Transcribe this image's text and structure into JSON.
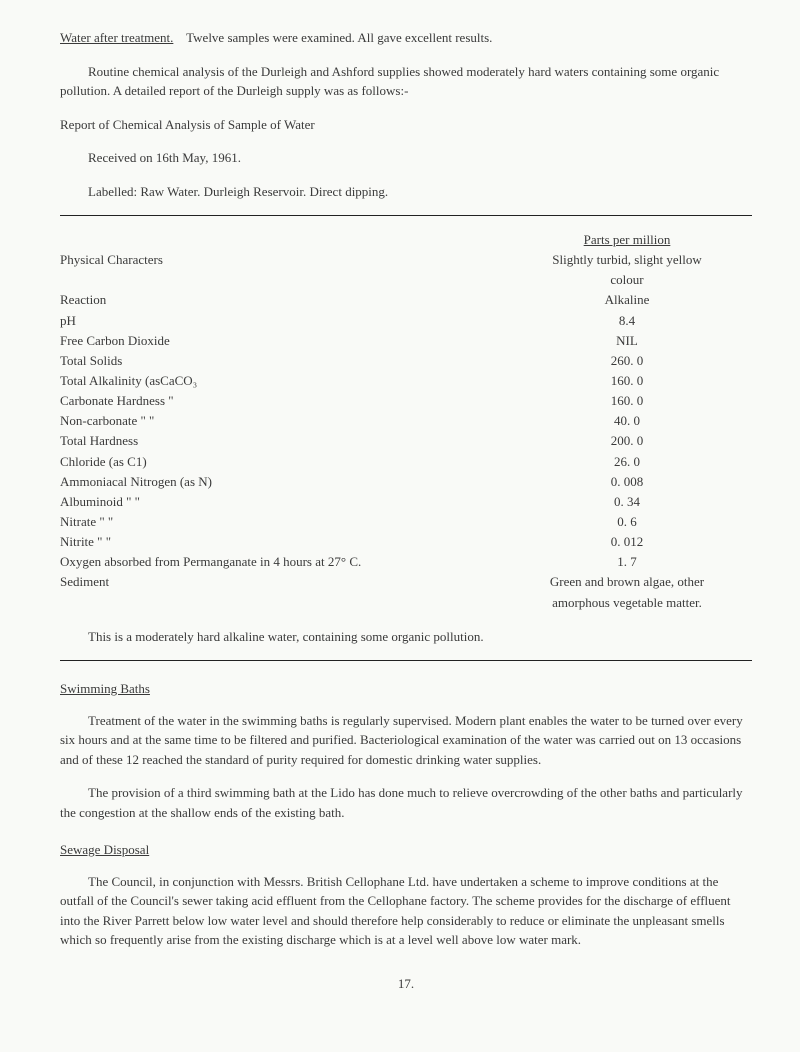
{
  "intro": {
    "water_after_treatment_label": "Water after treatment.",
    "water_after_treatment_text": "Twelve samples were examined.   All gave excellent results.",
    "routine_para": "Routine chemical analysis of the Durleigh and Ashford supplies showed moderately hard waters containing some organic pollution.    A detailed report of the Durleigh supply was as follows:-",
    "report_title": "Report of Chemical Analysis of Sample of Water",
    "received": "Received on 16th May, 1961.",
    "labelled": "Labelled:  Raw Water.    Durleigh Reservoir.    Direct dipping."
  },
  "table": {
    "parts_per_million": "Parts per million",
    "physical_characters_label": "Physical Characters",
    "physical_characters_val1": "Slightly turbid, slight yellow",
    "physical_characters_val2": "colour",
    "rows": [
      {
        "label": "Reaction",
        "val": "Alkaline"
      },
      {
        "label": "pH",
        "val": "8.4"
      },
      {
        "label": "Free Carbon Dioxide",
        "val": "NIL"
      },
      {
        "label": "Total Solids",
        "val": "260. 0"
      },
      {
        "label": "Total Alkalinity (asCaCO₃",
        "val": "160. 0"
      },
      {
        "label": "Carbonate Hardness  \"",
        "val": "160. 0"
      },
      {
        "label": "Non-carbonate    \"     \"",
        "val": "40. 0"
      },
      {
        "label": "Total Hardness",
        "val": "200. 0"
      },
      {
        "label": "Chloride (as C1)",
        "val": "26. 0"
      },
      {
        "label": "Ammoniacal Nitrogen (as N)",
        "val": "0. 008"
      },
      {
        "label": "Albuminoid        \"            \"",
        "val": "0. 34"
      },
      {
        "label": "Nitrate              \"              \"",
        "val": "0. 6"
      },
      {
        "label": "Nitrite               \"              \"",
        "val": "0. 012"
      },
      {
        "label": "Oxygen absorbed from Permanganate    in 4 hours at 27° C.",
        "val": "1. 7"
      }
    ],
    "sediment_label": "Sediment",
    "sediment_val1": "Green and brown algae, other",
    "sediment_val2": "amorphous vegetable matter.",
    "closing": "This is a moderately hard alkaline water, containing some organic pollution."
  },
  "swimming": {
    "title": "Swimming Baths",
    "p1": "Treatment of the water in the swimming baths is regularly supervised.    Modern plant enables the water to be turned over every six hours and at the same time to be filtered and purified.    Bacteriological examination   of the water was carried out on 13 occasions and of these 12 reached the standard of purity required for domestic drinking water supplies.",
    "p2": "The provision of a third swimming bath at the Lido has done much to relieve overcrowding of the other baths and particularly the congestion at the shallow ends of the existing bath."
  },
  "sewage": {
    "title": "Sewage Disposal",
    "p1": "The Council, in conjunction with Messrs. British Cellophane Ltd. have undertaken a scheme to improve conditions at the outfall of the Council's sewer taking acid effluent from the Cellophane factory.    The scheme provides for the discharge of effluent into the River Parrett below low water level and should therefore help considerably to reduce or eliminate the unpleasant smells which so frequently arise from the existing discharge which is at a level well above low water mark."
  },
  "pagenum": "17."
}
